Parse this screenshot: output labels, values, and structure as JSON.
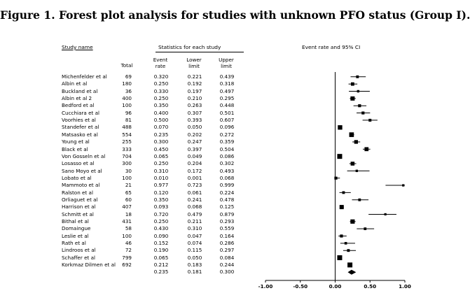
{
  "title": "Figure 1. Forest plot analysis for studies with unknown PFO status (Group I).",
  "headers": {
    "study_name": "Study name",
    "stats": "Statistics for each study",
    "plot": "Event rate and 95% CI",
    "total": "Total",
    "event_rate_1": "Event",
    "event_rate_2": "rate",
    "lower_1": "Lower",
    "lower_2": "limit",
    "upper_1": "Upper",
    "upper_2": "limit"
  },
  "chart_data": {
    "type": "forest",
    "x_ticks": [
      "-1.00",
      "-0.50",
      "0.00",
      "0.50",
      "1.00"
    ],
    "xlim": [
      -1.0,
      1.0
    ],
    "rows": [
      {
        "study": "Michenfelder et al",
        "total": "69",
        "rate": "0.320",
        "lower": "0.221",
        "upper": "0.439"
      },
      {
        "study": "Albin et al",
        "total": "180",
        "rate": "0.250",
        "lower": "0.192",
        "upper": "0.318"
      },
      {
        "study": "Buckland et al",
        "total": "36",
        "rate": "0.330",
        "lower": "0.197",
        "upper": "0.497"
      },
      {
        "study": "Albin et al 2",
        "total": "400",
        "rate": "0.250",
        "lower": "0.210",
        "upper": "0.295"
      },
      {
        "study": "Bedford et al",
        "total": "100",
        "rate": "0.350",
        "lower": "0.263",
        "upper": "0.448"
      },
      {
        "study": "Cucchiara et al",
        "total": "96",
        "rate": "0.400",
        "lower": "0.307",
        "upper": "0.501"
      },
      {
        "study": "Voorhies et al",
        "total": "81",
        "rate": "0.500",
        "lower": "0.393",
        "upper": "0.607"
      },
      {
        "study": "Standefer et al",
        "total": "488",
        "rate": "0.070",
        "lower": "0.050",
        "upper": "0.096"
      },
      {
        "study": "Matsasko et al",
        "total": "554",
        "rate": "0.235",
        "lower": "0.202",
        "upper": "0.272"
      },
      {
        "study": "Young et al",
        "total": "255",
        "rate": "0.300",
        "lower": "0.247",
        "upper": "0.359"
      },
      {
        "study": "Black et al",
        "total": "333",
        "rate": "0.450",
        "lower": "0.397",
        "upper": "0.504"
      },
      {
        "study": "Von Gosseln et al",
        "total": "704",
        "rate": "0.065",
        "lower": "0.049",
        "upper": "0.086"
      },
      {
        "study": "Losasso et al",
        "total": "300",
        "rate": "0.250",
        "lower": "0.204",
        "upper": "0.302"
      },
      {
        "study": "Sano Moyo et al",
        "total": "30",
        "rate": "0.310",
        "lower": "0.172",
        "upper": "0.493"
      },
      {
        "study": "Lobato et al",
        "total": "100",
        "rate": "0.010",
        "lower": "0.001",
        "upper": "0.068"
      },
      {
        "study": "Mammoto et al",
        "total": "21",
        "rate": "0.977",
        "lower": "0.723",
        "upper": "0.999"
      },
      {
        "study": "Ralston et al",
        "total": "65",
        "rate": "0.120",
        "lower": "0.061",
        "upper": "0.224"
      },
      {
        "study": "Orliaguet et al",
        "total": "60",
        "rate": "0.350",
        "lower": "0.241",
        "upper": "0.478"
      },
      {
        "study": "Harrison et al",
        "total": "407",
        "rate": "0.093",
        "lower": "0.068",
        "upper": "0.125"
      },
      {
        "study": "Schmitt et al",
        "total": "18",
        "rate": "0.720",
        "lower": "0.479",
        "upper": "0.879"
      },
      {
        "study": "Bithal et al",
        "total": "431",
        "rate": "0.250",
        "lower": "0.211",
        "upper": "0.293"
      },
      {
        "study": "Domaingue",
        "total": "58",
        "rate": "0.430",
        "lower": "0.310",
        "upper": "0.559"
      },
      {
        "study": "Leslie et al",
        "total": "100",
        "rate": "0.090",
        "lower": "0.047",
        "upper": "0.164"
      },
      {
        "study": "Rath et al",
        "total": "46",
        "rate": "0.152",
        "lower": "0.074",
        "upper": "0.286"
      },
      {
        "study": "Lindroos et al",
        "total": "72",
        "rate": "0.190",
        "lower": "0.115",
        "upper": "0.297"
      },
      {
        "study": "Schaffer et al",
        "total": "799",
        "rate": "0.065",
        "lower": "0.050",
        "upper": "0.084"
      },
      {
        "study": "Korkmaz Dilmen et al",
        "total": "692",
        "rate": "0.212",
        "lower": "0.183",
        "upper": "0.244"
      }
    ],
    "summary": {
      "rate": "0.235",
      "lower": "0.181",
      "upper": "0.300"
    }
  }
}
